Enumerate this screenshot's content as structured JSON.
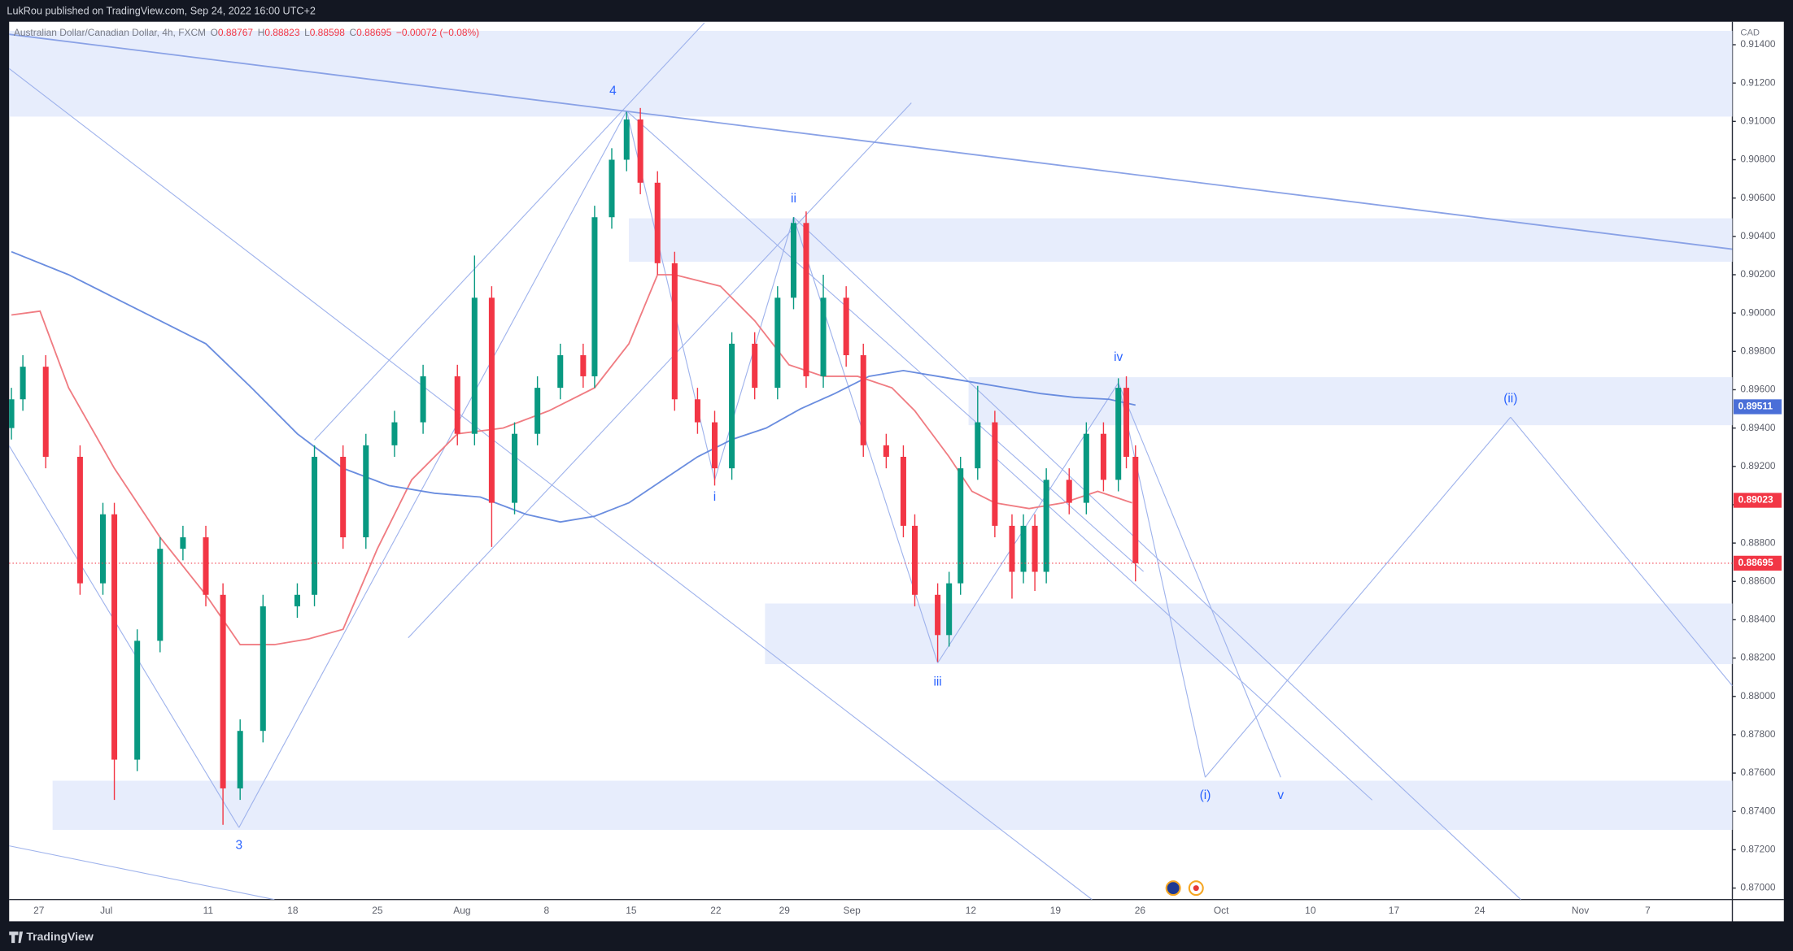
{
  "header": {
    "publisher": "LukRou published on TradingView.com, Sep 24, 2022 16:00 UTC+2"
  },
  "legend": {
    "symbol": "Australian Dollar/Canadian Dollar, 4h, FXCM",
    "ohlc": [
      {
        "label": "O",
        "value": 0.88767
      },
      {
        "label": "H",
        "value": 0.88823
      },
      {
        "label": "L",
        "value": 0.88598
      },
      {
        "label": "C",
        "value": 0.88695
      }
    ],
    "change": "−0.00072 (−0.08%)"
  },
  "price_axis": {
    "currency": "CAD",
    "ylim": [
      0.8694,
      0.9152
    ],
    "ticks": [
      {
        "value": 0.914,
        "label": "0.91400"
      },
      {
        "value": 0.912,
        "label": "0.91200"
      },
      {
        "value": 0.91,
        "label": "0.91000"
      },
      {
        "value": 0.908,
        "label": "0.90800"
      },
      {
        "value": 0.906,
        "label": "0.90600"
      },
      {
        "value": 0.904,
        "label": "0.90400"
      },
      {
        "value": 0.902,
        "label": "0.90200"
      },
      {
        "value": 0.9,
        "label": "0.90000"
      },
      {
        "value": 0.898,
        "label": "0.89800"
      },
      {
        "value": 0.896,
        "label": "0.89600"
      },
      {
        "value": 0.894,
        "label": "0.89400"
      },
      {
        "value": 0.892,
        "label": "0.89200"
      },
      {
        "value": 0.89,
        "label": "0.89000"
      },
      {
        "value": 0.888,
        "label": "0.88800"
      },
      {
        "value": 0.886,
        "label": "0.88600"
      },
      {
        "value": 0.884,
        "label": "0.88400"
      },
      {
        "value": 0.882,
        "label": "0.88200"
      },
      {
        "value": 0.88,
        "label": "0.88000"
      },
      {
        "value": 0.878,
        "label": "0.87800"
      },
      {
        "value": 0.876,
        "label": "0.87600"
      },
      {
        "value": 0.874,
        "label": "0.87400"
      },
      {
        "value": 0.872,
        "label": "0.87200"
      },
      {
        "value": 0.87,
        "label": "0.87000"
      }
    ]
  },
  "time_axis": {
    "labels": [
      "27",
      "Jul",
      "11",
      "18",
      "25",
      "Aug",
      "8",
      "15",
      "22",
      "29",
      "Sep",
      "12",
      "19",
      "26",
      "Oct",
      "10",
      "17",
      "24",
      "Nov",
      "7"
    ]
  },
  "price_tags": [
    {
      "value": 0.89511,
      "color": "#4a6fd8"
    },
    {
      "value": 0.89023,
      "color": "#f23645"
    },
    {
      "value": 0.88695,
      "color": "#f23645"
    }
  ],
  "candles": {
    "up_color": "#089981",
    "down_color": "#f23645",
    "ohlc": [
      [
        0.894,
        0.8961,
        0.8934,
        0.8955
      ],
      [
        0.8955,
        0.8978,
        0.8949,
        0.8972
      ],
      [
        0.8972,
        0.8978,
        0.8919,
        0.8925
      ],
      [
        0.8925,
        0.8931,
        0.8853,
        0.8859
      ],
      [
        0.8859,
        0.8901,
        0.8853,
        0.8895
      ],
      [
        0.8895,
        0.8901,
        0.8746,
        0.8767
      ],
      [
        0.8767,
        0.8835,
        0.8761,
        0.8829
      ],
      [
        0.8829,
        0.8883,
        0.8823,
        0.8877
      ],
      [
        0.8877,
        0.8889,
        0.8871,
        0.8883
      ],
      [
        0.8883,
        0.8889,
        0.8847,
        0.8853
      ],
      [
        0.8853,
        0.8859,
        0.8733,
        0.8752
      ],
      [
        0.8752,
        0.8788,
        0.8746,
        0.8782
      ],
      [
        0.8782,
        0.8853,
        0.8776,
        0.8847
      ],
      [
        0.8847,
        0.8859,
        0.8841,
        0.8853
      ],
      [
        0.8853,
        0.8931,
        0.8847,
        0.8925
      ],
      [
        0.8925,
        0.8931,
        0.8877,
        0.8883
      ],
      [
        0.8883,
        0.8937,
        0.8877,
        0.8931
      ],
      [
        0.8931,
        0.8949,
        0.8925,
        0.8943
      ],
      [
        0.8943,
        0.8973,
        0.8937,
        0.8967
      ],
      [
        0.8967,
        0.8973,
        0.8931,
        0.8937
      ],
      [
        0.8937,
        0.903,
        0.8931,
        0.9008
      ],
      [
        0.9008,
        0.9014,
        0.8878,
        0.8901
      ],
      [
        0.8901,
        0.8943,
        0.8895,
        0.8937
      ],
      [
        0.8937,
        0.8967,
        0.8931,
        0.8961
      ],
      [
        0.8961,
        0.8984,
        0.8955,
        0.8978
      ],
      [
        0.8978,
        0.8984,
        0.8961,
        0.8967
      ],
      [
        0.8967,
        0.9056,
        0.8961,
        0.905
      ],
      [
        0.905,
        0.9086,
        0.9044,
        0.908
      ],
      [
        0.908,
        0.9105,
        0.9074,
        0.9101
      ],
      [
        0.9101,
        0.9107,
        0.9062,
        0.9068
      ],
      [
        0.9068,
        0.9074,
        0.902,
        0.9026
      ],
      [
        0.9026,
        0.9032,
        0.8949,
        0.8955
      ],
      [
        0.8955,
        0.8961,
        0.8937,
        0.8943
      ],
      [
        0.8943,
        0.8949,
        0.891,
        0.8919
      ],
      [
        0.8919,
        0.899,
        0.8913,
        0.8984
      ],
      [
        0.8984,
        0.899,
        0.8955,
        0.8961
      ],
      [
        0.8961,
        0.9014,
        0.8955,
        0.9008
      ],
      [
        0.9008,
        0.905,
        0.9002,
        0.9047
      ],
      [
        0.9047,
        0.9053,
        0.8961,
        0.8967
      ],
      [
        0.8967,
        0.902,
        0.8961,
        0.9008
      ],
      [
        0.9008,
        0.9014,
        0.8972,
        0.8978
      ],
      [
        0.8978,
        0.8984,
        0.8925,
        0.8931
      ],
      [
        0.8931,
        0.8937,
        0.8919,
        0.8925
      ],
      [
        0.8925,
        0.8931,
        0.8883,
        0.8889
      ],
      [
        0.8889,
        0.8895,
        0.8847,
        0.8853
      ],
      [
        0.8853,
        0.8859,
        0.8818,
        0.8832
      ],
      [
        0.8832,
        0.8865,
        0.8826,
        0.8859
      ],
      [
        0.8859,
        0.8925,
        0.8853,
        0.8919
      ],
      [
        0.8919,
        0.8962,
        0.8913,
        0.8943
      ],
      [
        0.8943,
        0.8949,
        0.8883,
        0.8889
      ],
      [
        0.8889,
        0.8895,
        0.8851,
        0.8865
      ],
      [
        0.8865,
        0.8895,
        0.8859,
        0.8889
      ],
      [
        0.8889,
        0.8895,
        0.8855,
        0.8865
      ],
      [
        0.8865,
        0.8919,
        0.8859,
        0.8913
      ],
      [
        0.8913,
        0.8919,
        0.8895,
        0.8901
      ],
      [
        0.8901,
        0.8943,
        0.8895,
        0.8937
      ],
      [
        0.8937,
        0.8943,
        0.8907,
        0.8913
      ],
      [
        0.8913,
        0.8966,
        0.8907,
        0.8961
      ],
      [
        0.8961,
        0.8967,
        0.8919,
        0.8925
      ],
      [
        0.8925,
        0.8931,
        0.886,
        0.88695
      ]
    ]
  },
  "moving_averages": [
    {
      "color": "#f07c82",
      "values": [
        0.8999,
        0.9001,
        0.8961,
        0.8919,
        0.8883,
        0.8853,
        0.8827,
        0.8827,
        0.883,
        0.8835,
        0.8877,
        0.8913,
        0.8937,
        0.894,
        0.8949,
        0.8961,
        0.8984,
        0.902,
        0.902,
        0.9014,
        0.8996,
        0.8973,
        0.8967,
        0.8967,
        0.8961,
        0.8949,
        0.8925,
        0.8907,
        0.8901,
        0.8898,
        0.8901,
        0.8907,
        0.8901
      ]
    },
    {
      "color": "#6a8ddf",
      "values": [
        0.9032,
        0.902,
        0.9008,
        0.8996,
        0.8984,
        0.8961,
        0.8937,
        0.8919,
        0.891,
        0.8906,
        0.8904,
        0.8895,
        0.8891,
        0.8894,
        0.8901,
        0.8913,
        0.8925,
        0.8934,
        0.894,
        0.895,
        0.8958,
        0.8967,
        0.897,
        0.8967,
        0.8964,
        0.8961,
        0.8958,
        0.8956,
        0.8955,
        0.8952
      ]
    }
  ],
  "wave_labels": [
    "4",
    "ii",
    "i",
    "iii",
    "iv",
    "(ii)",
    "(i)",
    "v",
    "3"
  ],
  "footer": {
    "brand": "TradingView"
  }
}
